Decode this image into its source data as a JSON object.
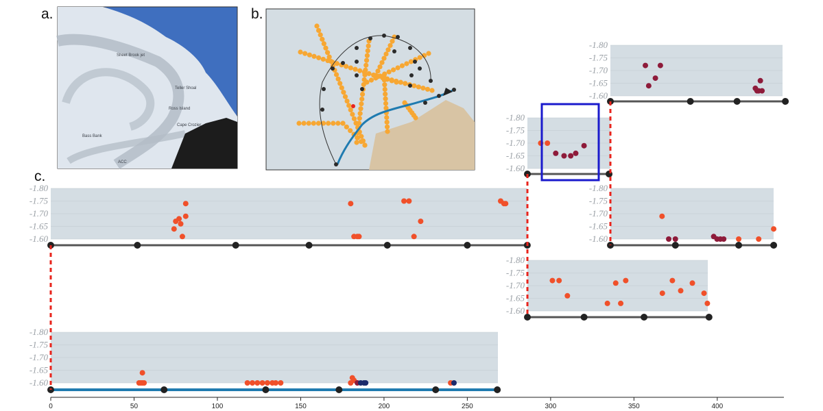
{
  "figure": {
    "panel_labels": [
      "a.",
      "b.",
      "c."
    ],
    "map_a_labels": [
      "Sheet Brook jet",
      "Teller Shoal",
      "Bass Bank",
      "Ross Island",
      "Cape Crozier",
      "ACC"
    ]
  },
  "colors": {
    "strip_bg": "#d4dde3",
    "axis_grey": "#555555",
    "route_blue": "#1f7bb0",
    "connector_red": "#e8241c",
    "highlight_box": "#1a1acc",
    "track_orange": "#f7a733",
    "station_black": "#2b2b2b",
    "land_tan": "#d8c4a4",
    "sea_blue": "#3f6fbf",
    "point_red_orange": "#f0502a",
    "point_dark_red": "#8e1b3a",
    "point_navy": "#1b2a6b"
  },
  "chart_data": {
    "type": "scatter",
    "x_axis": {
      "ticks": [
        0,
        50,
        100,
        150,
        200,
        250,
        300,
        350,
        400
      ],
      "range": [
        0,
        440
      ]
    },
    "y_ticks": [
      "-1.80",
      "-1.75",
      "-1.70",
      "-1.65",
      "-1.60"
    ],
    "y_range": [
      -1.8,
      -1.6
    ],
    "series": [
      {
        "points": [
          [
            53,
            -1.6
          ],
          [
            54,
            -1.6
          ],
          [
            55,
            -1.6
          ],
          [
            56,
            -1.6
          ],
          [
            55,
            -1.64
          ],
          [
            118,
            -1.6
          ],
          [
            121,
            -1.6
          ],
          [
            124,
            -1.6
          ],
          [
            127,
            -1.6
          ],
          [
            130,
            -1.6
          ],
          [
            133,
            -1.6
          ],
          [
            135,
            -1.6
          ],
          [
            138,
            -1.6
          ],
          [
            180,
            -1.6
          ],
          [
            181,
            -1.62
          ],
          [
            182,
            -1.61
          ],
          [
            184,
            -1.6
          ],
          [
            186,
            -1.6
          ],
          [
            188,
            -1.6
          ],
          [
            189,
            -1.6
          ],
          [
            240,
            -1.6
          ],
          [
            242,
            -1.6
          ]
        ]
      },
      {
        "points": [
          [
            74,
            -1.64
          ],
          [
            75,
            -1.67
          ],
          [
            77,
            -1.68
          ],
          [
            78,
            -1.66
          ],
          [
            79,
            -1.61
          ],
          [
            81,
            -1.69
          ],
          [
            81,
            -1.74
          ],
          [
            180,
            -1.74
          ],
          [
            182,
            -1.61
          ],
          [
            184,
            -1.61
          ],
          [
            185,
            -1.61
          ],
          [
            212,
            -1.75
          ],
          [
            215,
            -1.75
          ],
          [
            218,
            -1.61
          ],
          [
            222,
            -1.67
          ],
          [
            270,
            -1.75
          ],
          [
            272,
            -1.74
          ],
          [
            273,
            -1.74
          ]
        ]
      },
      {
        "points": [
          [
            301,
            -1.72
          ],
          [
            305,
            -1.72
          ],
          [
            310,
            -1.66
          ],
          [
            334,
            -1.63
          ],
          [
            339,
            -1.71
          ],
          [
            342,
            -1.63
          ],
          [
            345,
            -1.72
          ],
          [
            367,
            -1.67
          ],
          [
            373,
            -1.72
          ],
          [
            378,
            -1.68
          ],
          [
            385,
            -1.71
          ],
          [
            392,
            -1.67
          ],
          [
            394,
            -1.63
          ]
        ]
      },
      {
        "points": [
          [
            294,
            -1.7
          ],
          [
            298,
            -1.7
          ],
          [
            303,
            -1.66
          ],
          [
            308,
            -1.65
          ],
          [
            312,
            -1.65
          ],
          [
            315,
            -1.66
          ],
          [
            320,
            -1.69
          ]
        ]
      },
      {
        "points": [
          [
            356,
            -1.72
          ],
          [
            358,
            -1.64
          ],
          [
            362,
            -1.67
          ],
          [
            365,
            -1.72
          ],
          [
            422,
            -1.63
          ],
          [
            423,
            -1.62
          ],
          [
            424,
            -1.62
          ],
          [
            425,
            -1.66
          ],
          [
            426,
            -1.62
          ]
        ]
      },
      {
        "points": [
          [
            366,
            -1.69
          ],
          [
            370,
            -1.6
          ],
          [
            374,
            -1.6
          ],
          [
            397,
            -1.61
          ],
          [
            399,
            -1.6
          ],
          [
            401,
            -1.6
          ],
          [
            403,
            -1.6
          ],
          [
            412,
            -1.6
          ],
          [
            424,
            -1.6
          ],
          [
            433,
            -1.64
          ]
        ]
      }
    ]
  }
}
